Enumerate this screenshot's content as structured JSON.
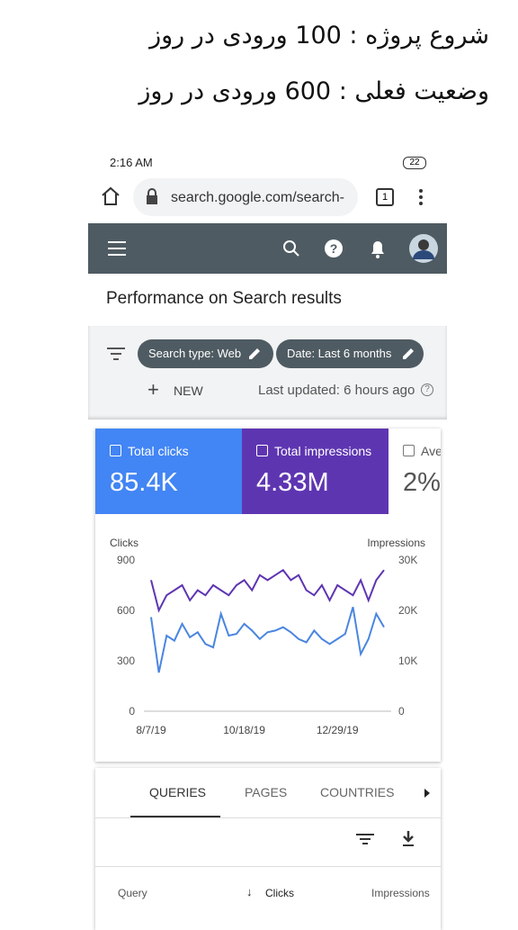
{
  "caption": {
    "lines": [
      "شروع پروژه : 100 ورودی در روز",
      "وضعیت فعلی : 600 ورودی در روز"
    ]
  },
  "status_bar": {
    "time": "2:16 AM",
    "battery": "22"
  },
  "browser": {
    "url": "search.google.com/search-",
    "tab_count": "1"
  },
  "page": {
    "title": "Performance on Search results"
  },
  "filters": {
    "chips": [
      "Search type: Web",
      "Date: Last 6 months"
    ],
    "new": "NEW",
    "updated": "Last updated: 6 hours ago"
  },
  "cards": [
    {
      "label": "Total clicks",
      "value": "85.4K"
    },
    {
      "label": "Total impressions",
      "value": "4.33M"
    },
    {
      "label": "Ave",
      "value": "2%"
    }
  ],
  "chart_data": {
    "type": "line",
    "y_label": "Clicks",
    "y2_label": "Impressions",
    "categories": [
      "8/7/19",
      null,
      null,
      null,
      null,
      null,
      null,
      null,
      null,
      null,
      null,
      null,
      "10/18/19",
      null,
      null,
      null,
      null,
      null,
      null,
      null,
      null,
      null,
      null,
      null,
      "12/29/19",
      null,
      null,
      null,
      null,
      null,
      null
    ],
    "ylim": [
      0,
      900
    ],
    "yticks": [
      0,
      300,
      600,
      900
    ],
    "y2lim": [
      0,
      30000
    ],
    "y2ticks": [
      0,
      {
        "value": 10000,
        "label": "10K"
      },
      {
        "value": 20000,
        "label": "20K"
      },
      {
        "value": 30000,
        "label": "30K"
      }
    ],
    "series": [
      {
        "name": "Clicks",
        "color": "#4a86e0",
        "values": [
          560,
          230,
          450,
          420,
          520,
          440,
          470,
          400,
          380,
          580,
          450,
          460,
          520,
          480,
          430,
          470,
          480,
          500,
          470,
          430,
          410,
          480,
          430,
          400,
          430,
          460,
          620,
          340,
          430,
          580,
          500
        ]
      },
      {
        "name": "Impressions",
        "color": "#5e35b1",
        "axis": "y2",
        "values": [
          26000,
          20000,
          23000,
          24000,
          25000,
          22000,
          24000,
          23000,
          25000,
          24000,
          23000,
          25000,
          26000,
          24000,
          27000,
          26000,
          27000,
          28000,
          26000,
          27000,
          24000,
          23000,
          25000,
          22000,
          25000,
          24000,
          23000,
          26000,
          22000,
          26000,
          28000
        ]
      }
    ]
  },
  "tabs": [
    "QUERIES",
    "PAGES",
    "COUNTRIES"
  ],
  "table": {
    "headers": [
      "Query",
      "Clicks",
      "Impressions"
    ]
  }
}
